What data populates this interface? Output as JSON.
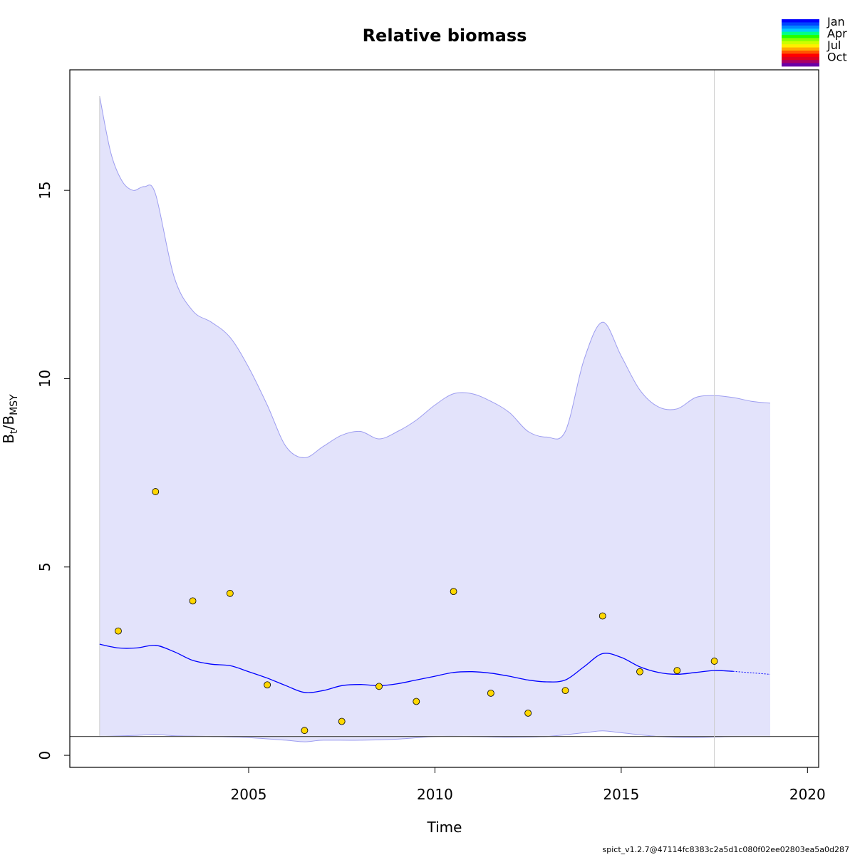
{
  "chart_data": {
    "type": "line",
    "title": "Relative biomass",
    "xlabel": "Time",
    "ylabel_main": "B",
    "ylabel_sub1": "t",
    "ylabel_sep": "/B",
    "ylabel_sub2": "MSY",
    "xlim": [
      2000.2,
      2020.3
    ],
    "ylim": [
      -0.32,
      18.2
    ],
    "x_ticks": [
      2005,
      2010,
      2015,
      2020
    ],
    "y_ticks": [
      0,
      5,
      10,
      15
    ],
    "grid": false,
    "reference_line_y": 0.5,
    "vertical_line_x": 2017.5,
    "estimate": {
      "x": [
        2001.0,
        2001.5,
        2002.0,
        2002.5,
        2003.0,
        2003.5,
        2004.0,
        2004.5,
        2005.0,
        2005.5,
        2006.0,
        2006.5,
        2007.0,
        2007.5,
        2008.0,
        2008.5,
        2009.0,
        2009.5,
        2010.0,
        2010.5,
        2011.0,
        2011.5,
        2012.0,
        2012.5,
        2013.0,
        2013.5,
        2014.0,
        2014.5,
        2015.0,
        2015.5,
        2016.0,
        2016.5,
        2017.0,
        2017.5,
        2018.0
      ],
      "y": [
        2.95,
        2.85,
        2.85,
        2.92,
        2.75,
        2.52,
        2.42,
        2.38,
        2.22,
        2.05,
        1.85,
        1.67,
        1.72,
        1.85,
        1.88,
        1.85,
        1.9,
        2.0,
        2.1,
        2.2,
        2.22,
        2.18,
        2.1,
        2.0,
        1.95,
        2.0,
        2.35,
        2.7,
        2.6,
        2.35,
        2.2,
        2.15,
        2.2,
        2.25,
        2.23
      ]
    },
    "forecast": {
      "x": [
        2018.0,
        2018.5,
        2019.0
      ],
      "y": [
        2.23,
        2.19,
        2.15
      ]
    },
    "ci_upper": {
      "x": [
        2001.0,
        2001.3,
        2001.6,
        2001.9,
        2002.2,
        2002.5,
        2003.0,
        2003.5,
        2004.0,
        2004.5,
        2005.0,
        2005.5,
        2006.0,
        2006.5,
        2007.0,
        2007.5,
        2008.0,
        2008.5,
        2009.0,
        2009.5,
        2010.0,
        2010.5,
        2011.0,
        2011.5,
        2012.0,
        2012.5,
        2013.0,
        2013.5,
        2014.0,
        2014.5,
        2015.0,
        2015.5,
        2016.0,
        2016.5,
        2017.0,
        2017.5,
        2018.0,
        2018.5,
        2019.0
      ],
      "y": [
        17.5,
        16.0,
        15.25,
        15.0,
        15.1,
        14.9,
        12.7,
        11.8,
        11.5,
        11.1,
        10.3,
        9.3,
        8.2,
        7.9,
        8.2,
        8.5,
        8.6,
        8.4,
        8.6,
        8.9,
        9.3,
        9.6,
        9.6,
        9.4,
        9.1,
        8.6,
        8.45,
        8.6,
        10.5,
        11.5,
        10.6,
        9.7,
        9.25,
        9.2,
        9.5,
        9.55,
        9.5,
        9.4,
        9.35
      ]
    },
    "ci_lower": {
      "x": [
        2001.0,
        2002.0,
        2002.5,
        2003.0,
        2004.0,
        2005.0,
        2006.0,
        2006.5,
        2007.0,
        2008.0,
        2009.0,
        2010.0,
        2011.0,
        2012.0,
        2013.0,
        2014.0,
        2014.5,
        2015.0,
        2016.0,
        2017.0,
        2018.0,
        2019.0
      ],
      "y": [
        0.5,
        0.53,
        0.56,
        0.52,
        0.5,
        0.47,
        0.4,
        0.36,
        0.4,
        0.4,
        0.43,
        0.5,
        0.5,
        0.48,
        0.5,
        0.6,
        0.65,
        0.6,
        0.5,
        0.47,
        0.5,
        0.5
      ]
    },
    "observations": {
      "x": [
        2001.5,
        2002.5,
        2003.5,
        2004.5,
        2005.5,
        2006.5,
        2007.5,
        2008.5,
        2009.5,
        2010.5,
        2011.5,
        2012.5,
        2013.5,
        2014.5,
        2015.5,
        2016.5,
        2017.5
      ],
      "y": [
        3.3,
        7.0,
        4.1,
        4.3,
        1.87,
        0.66,
        0.9,
        1.83,
        1.43,
        4.35,
        1.65,
        1.12,
        1.72,
        3.7,
        2.22,
        2.25,
        2.5
      ]
    },
    "legend": {
      "placement": "top-right",
      "labels": [
        "Jan",
        "Apr",
        "Jul",
        "Oct"
      ],
      "colors": [
        "#0000ff",
        "#0044ff",
        "#0088ff",
        "#00ccff",
        "#00ff88",
        "#22ff00",
        "#88ff00",
        "#ccff00",
        "#ffee00",
        "#ffaa00",
        "#ff5500",
        "#ff0000",
        "#dd0022",
        "#aa0066",
        "#6a00a8"
      ]
    },
    "colors": {
      "ci_fill": "#e3e3fb",
      "ci_border": "#9d9df0",
      "estimate_line": "#0000ff",
      "points_fill": "#ffd700",
      "reference_line": "#555555",
      "vertical_line": "#cccccc"
    },
    "footer": "spict_v1.2.7@47114fc8383c2a5d1c080f02ee02803ea5a0d287"
  }
}
